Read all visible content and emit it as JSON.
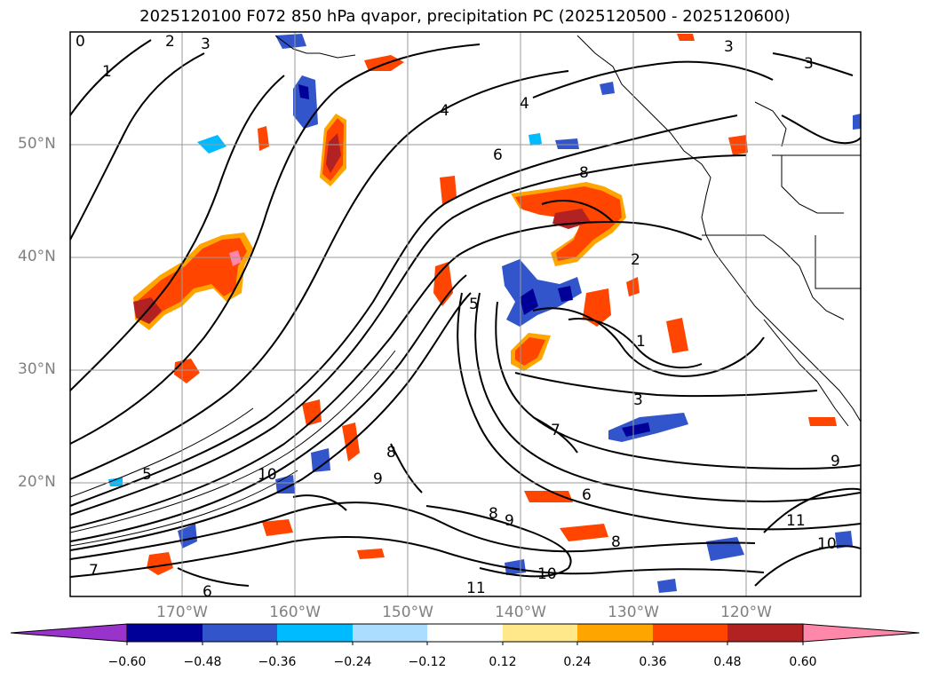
{
  "title": "2025120100 F072 850 hPa qvapor, precipitation PC (2025120500 - 2025120600)",
  "map": {
    "region": "Northeast Pacific and western North America",
    "lat_labels": [
      "50°N",
      "40°N",
      "30°N",
      "20°N"
    ],
    "lon_labels": [
      "170°W",
      "160°W",
      "150°W",
      "140°W",
      "130°W",
      "120°W"
    ],
    "contour_field": "850 hPa qvapor",
    "contour_labels": [
      "0",
      "1",
      "2",
      "3",
      "3",
      "3",
      "4",
      "4",
      "5",
      "6",
      "6",
      "7",
      "8",
      "8",
      "8",
      "9",
      "9",
      "10",
      "10",
      "11",
      "11",
      "1",
      "2",
      "3",
      "5",
      "6",
      "7",
      "8",
      "9",
      "10"
    ],
    "fill_field": "precipitation PC"
  },
  "colorbar": {
    "ticks": [
      "−0.60",
      "−0.48",
      "−0.36",
      "−0.24",
      "−0.12",
      "0.12",
      "0.24",
      "0.36",
      "0.48",
      "0.60"
    ],
    "colors": [
      "#9933cc",
      "#000099",
      "#3355cc",
      "#00bbff",
      "#aaddff",
      "#ffffff",
      "#ffe88a",
      "#ffa500",
      "#ff4500",
      "#b22222",
      "#ff88aa"
    ]
  }
}
